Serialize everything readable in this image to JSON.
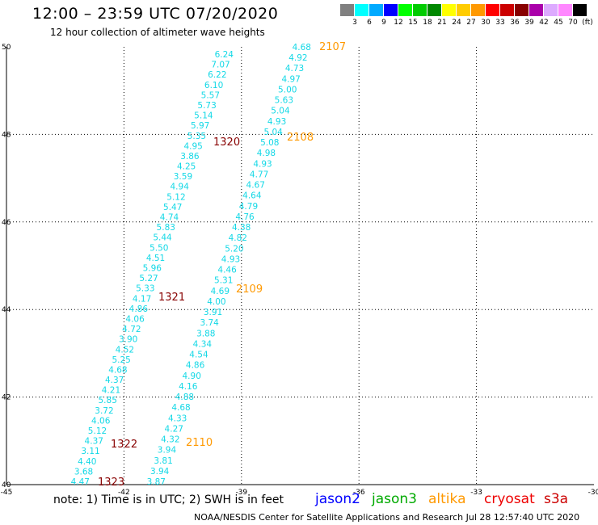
{
  "header": {
    "title": "12:00 – 23:59 UTC 07/20/2020",
    "subtitle": "12 hour collection of altimeter wave heights"
  },
  "legend": {
    "colors": [
      "#808080",
      "#00ffff",
      "#00aaff",
      "#0000ff",
      "#00ff00",
      "#00cc00",
      "#008800",
      "#ffff00",
      "#ffcc00",
      "#ff9900",
      "#ff0000",
      "#cc0000",
      "#880000",
      "#aa00aa",
      "#ddaaff",
      "#ff88ff",
      "#000000"
    ],
    "ticks": [
      "3",
      "6",
      "9",
      "12",
      "15",
      "18",
      "21",
      "24",
      "27",
      "30",
      "33",
      "36",
      "39",
      "42",
      "45",
      "70",
      "(ft)"
    ]
  },
  "axes": {
    "x_ticks": [
      "-45",
      "-42",
      "-39",
      "-36",
      "-33",
      "-30"
    ],
    "y_ticks": [
      "50",
      "48",
      "46",
      "44",
      "42",
      "40"
    ],
    "lon_range": [
      -45,
      -30
    ],
    "lat_range": [
      40,
      50
    ]
  },
  "tracks": [
    {
      "pass": "1320",
      "pass_color": "#880000",
      "values": [
        "6.24",
        "7.07",
        "6.22",
        "6.10",
        "5.57",
        "5.73",
        "5.14",
        "5.97",
        "5.35",
        "4.95",
        "3.86",
        "4.25",
        "3.59",
        "4.94",
        "5.12",
        "5.47",
        "4.74",
        "5.83",
        "5.44",
        "5.50",
        "4.51",
        "5.96",
        "5.27",
        "5.33",
        "4.17",
        "4.86",
        "4.06",
        "4.72",
        "3.90",
        "4.52",
        "5.25",
        "4.68",
        "4.37",
        "4.21",
        "5.85",
        "3.72",
        "4.06",
        "5.12",
        "4.37",
        "3.11",
        "4.40",
        "3.68",
        "4.47"
      ]
    },
    {
      "pass": "1321",
      "pass_color": "#880000"
    },
    {
      "pass": "1322",
      "pass_color": "#880000"
    },
    {
      "pass": "1323",
      "pass_color": "#880000"
    },
    {
      "pass": "2107",
      "pass_color": "#ff9900",
      "values": [
        "4.68",
        "4.92",
        "4.73",
        "4.97",
        "5.00",
        "5.63",
        "5.04",
        "4.93",
        "5.04",
        "5.08",
        "4.98",
        "4.93",
        "4.77",
        "4.67",
        "4.64",
        "4.79",
        "4.76",
        "4.38",
        "4.82",
        "5.20",
        "4.93",
        "4.46",
        "5.31",
        "4.69",
        "4.00",
        "3.91",
        "3.74",
        "3.88",
        "4.34",
        "4.54",
        "4.86",
        "4.90",
        "4.16",
        "4.88",
        "4.68",
        "4.33",
        "4.27",
        "4.32",
        "3.94",
        "3.81",
        "3.94",
        "3.87"
      ]
    },
    {
      "pass": "2108",
      "pass_color": "#ff9900"
    },
    {
      "pass": "2109",
      "pass_color": "#ff9900"
    },
    {
      "pass": "2110",
      "pass_color": "#ff9900"
    }
  ],
  "footer": {
    "note": "note: 1) Time is in UTC; 2) SWH is in feet",
    "satellites": [
      {
        "name": "jason2",
        "color": "#0000ff"
      },
      {
        "name": "jason3",
        "color": "#00aa00"
      },
      {
        "name": "altika",
        "color": "#ff9900"
      },
      {
        "name": "cryosat",
        "color": "#ee0000"
      },
      {
        "name": "s3a",
        "color": "#cc0000"
      }
    ],
    "credit": "NOAA/NESDIS Center for Satellite Applications and Research     Jul 28 12:57:40 UTC 2020"
  }
}
